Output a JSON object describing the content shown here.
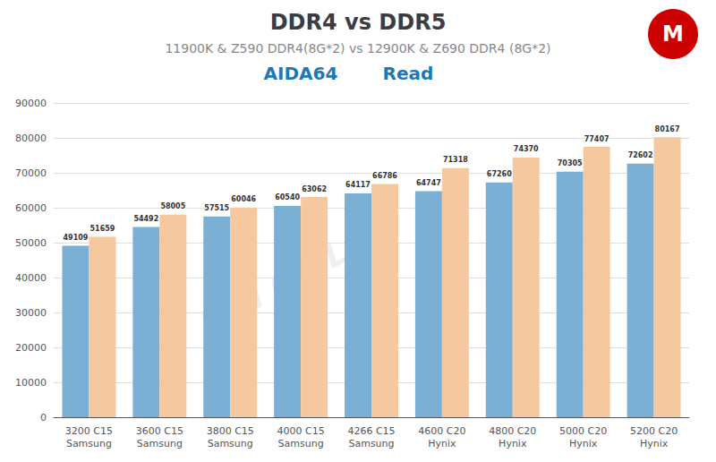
{
  "chart_data": {
    "type": "bar",
    "title": "DDR4 vs DDR5",
    "subtitle": "11900K & Z590 DDR4(8G*2) vs 12900K & Z690 DDR4 (8G*2)",
    "annotations": [
      "AIDA64",
      "Read",
      "MSI OC LAB",
      "M"
    ],
    "categories": [
      "3200 C15\nSamsung",
      "3600 C15\nSamsung",
      "3800 C15\nSamsung",
      "4000 C15\nSamsung",
      "4266 C15\nSamsung",
      "4600 C20\nHynix",
      "4800 C20\nHynix",
      "5000 C20\nHynix",
      "5200 C20\nHynix"
    ],
    "series": [
      {
        "color": "#7BAFD4",
        "values": [
          49109,
          54492,
          57515,
          60540,
          64117,
          64747,
          67260,
          70305,
          72602
        ]
      },
      {
        "color": "#F5C8A0",
        "values": [
          51659,
          58005,
          60046,
          63062,
          66786,
          71318,
          74370,
          77407,
          80167
        ]
      }
    ],
    "ylim": [
      0,
      90000
    ],
    "yticks": [
      0,
      10000,
      20000,
      30000,
      40000,
      50000,
      60000,
      70000,
      80000,
      90000
    ],
    "grid": true,
    "data_labels": true
  }
}
